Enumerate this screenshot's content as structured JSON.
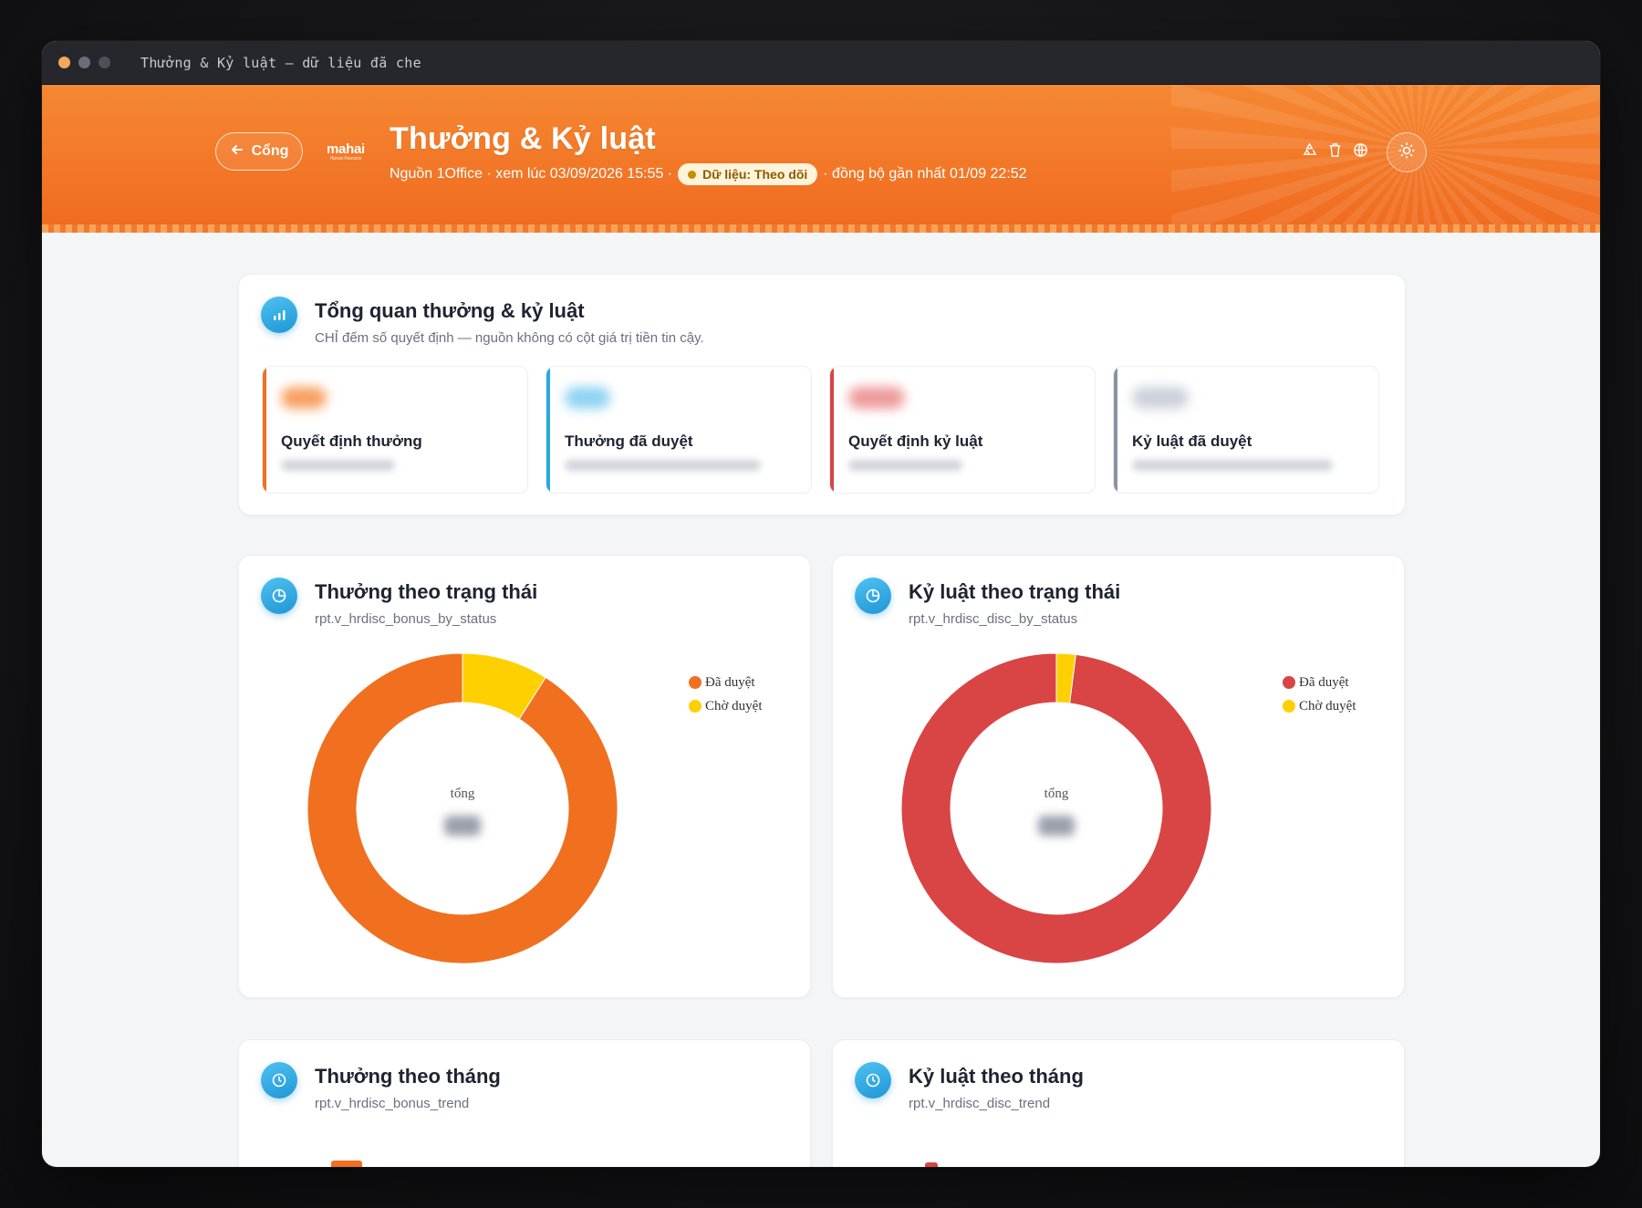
{
  "window": {
    "title": "Thưởng & Kỷ luật — dữ liệu đã che"
  },
  "colors": {
    "accent": "#f07020",
    "info": "#1f96d6",
    "danger": "#d94444",
    "pending": "#ffd000",
    "muted": "#8a93a3"
  },
  "header": {
    "back_label": "Cổng",
    "logo_text": "mahai",
    "logo_tagline": "Human Resource",
    "title": "Thưởng & Kỷ luật",
    "subtitle_prefix": "Nguồn 1Office · xem lúc 03/09/2026 15:55 ·",
    "status_pill": "Dữ liệu: Theo dõi",
    "subtitle_suffix": "· đồng bộ gần nhất 01/09 22:52",
    "icons": [
      "recycle-icon",
      "trash-icon",
      "globe-icon"
    ],
    "theme_icon": "sun-icon"
  },
  "overview": {
    "title": "Tổng quan thưởng & kỷ luật",
    "subtitle": "CHỈ đếm số quyết định — nguồn không có cột giá trị tiền tin cậy.",
    "kpis": [
      {
        "label": "Quyết định thưởng",
        "color": "#f07020"
      },
      {
        "label": "Thưởng đã duyệt",
        "color": "#29a9e0"
      },
      {
        "label": "Quyết định kỷ luật",
        "color": "#d94444"
      },
      {
        "label": "Kỷ luật đã duyệt",
        "color": "#8a93a3"
      }
    ]
  },
  "bonus_status": {
    "title": "Thưởng theo trạng thái",
    "subtitle": "rpt.v_hrdisc_bonus_by_status",
    "center_label": "tổng",
    "legend": [
      "Đã duyệt",
      "Chờ duyệt"
    ]
  },
  "disc_status": {
    "title": "Kỷ luật theo trạng thái",
    "subtitle": "rpt.v_hrdisc_disc_by_status",
    "center_label": "tổng",
    "legend": [
      "Đã duyệt",
      "Chờ duyệt"
    ]
  },
  "bonus_trend": {
    "title": "Thưởng theo tháng",
    "subtitle": "rpt.v_hrdisc_bonus_trend"
  },
  "disc_trend": {
    "title": "Kỷ luật theo tháng",
    "subtitle": "rpt.v_hrdisc_disc_trend"
  },
  "chart_data": [
    {
      "type": "pie",
      "title": "Thưởng theo trạng thái",
      "categories": [
        "Đã duyệt",
        "Chờ duyệt"
      ],
      "values": [
        0.91,
        0.09
      ],
      "colors": [
        "#f07020",
        "#ffd000"
      ],
      "donut": true,
      "legend": "top-right"
    },
    {
      "type": "pie",
      "title": "Kỷ luật theo trạng thái",
      "categories": [
        "Đã duyệt",
        "Chờ duyệt"
      ],
      "values": [
        0.98,
        0.02
      ],
      "colors": [
        "#d94444",
        "#ffd000"
      ],
      "donut": true,
      "legend": "top-right"
    }
  ]
}
